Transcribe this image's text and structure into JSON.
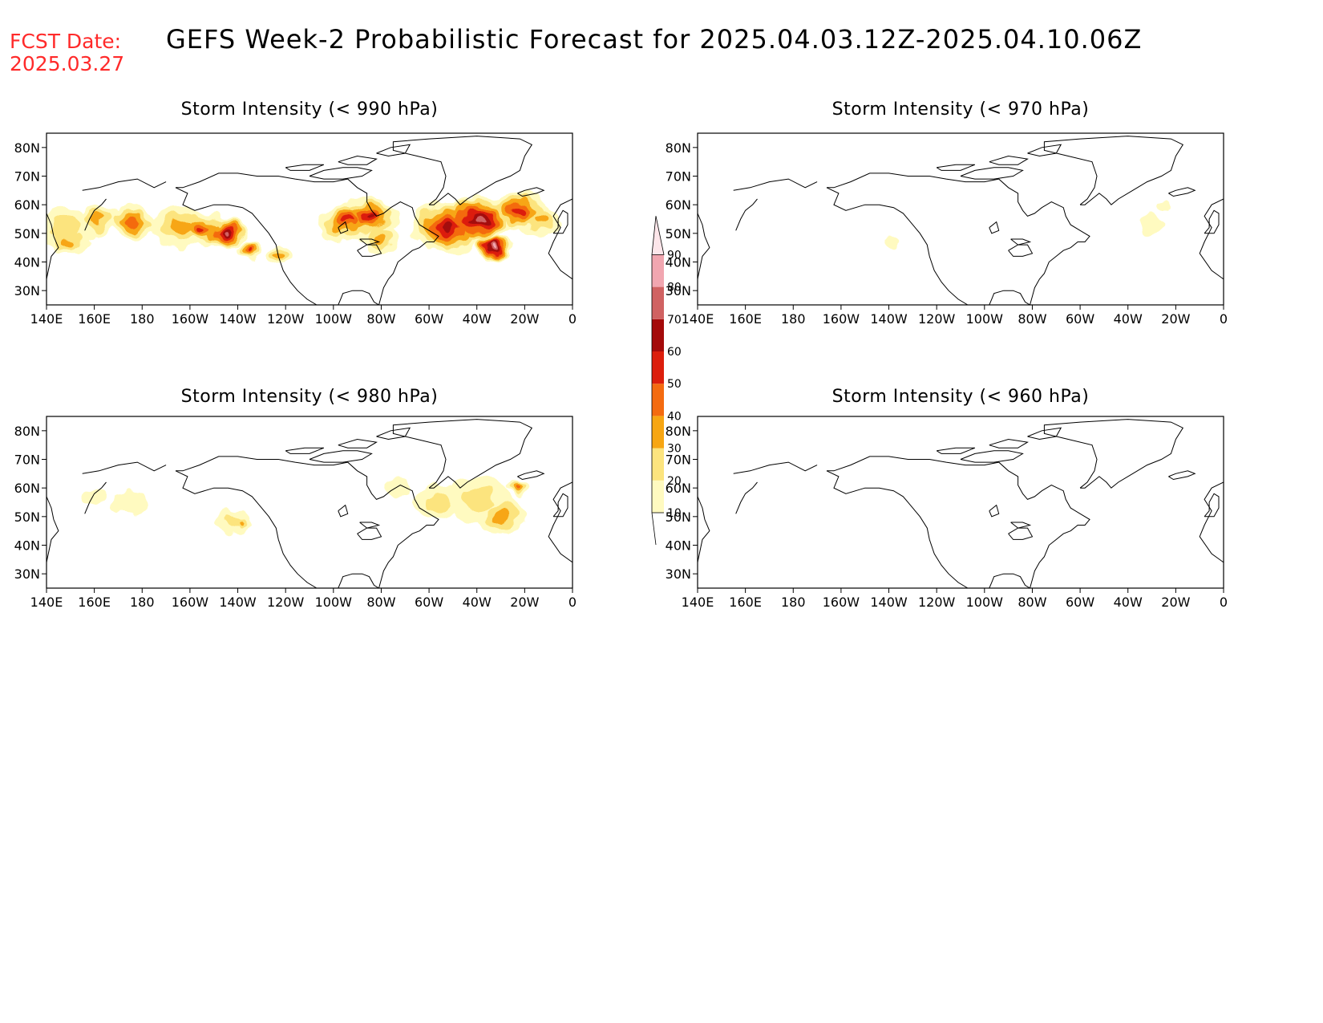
{
  "header": {
    "fcst_label": "FCST Date:",
    "fcst_date": "2025.03.27",
    "title": "GEFS Week-2 Probabilistic Forecast for 2025.04.03.12Z-2025.04.10.06Z"
  },
  "axes": {
    "x_labels": [
      "140E",
      "160E",
      "180",
      "160W",
      "140W",
      "120W",
      "100W",
      "80W",
      "60W",
      "40W",
      "20W",
      "0"
    ],
    "y_labels": [
      "80N",
      "70N",
      "60N",
      "50N",
      "40N",
      "30N"
    ]
  },
  "colorbar": {
    "labels": [
      "10",
      "20",
      "30",
      "40",
      "50",
      "60",
      "70",
      "80",
      "90"
    ],
    "colors": [
      "#fffac0",
      "#fce47e",
      "#f7a613",
      "#f46b10",
      "#dc1e0c",
      "#a40a0a",
      "#d06262",
      "#f1a6b0",
      "#fde6ea"
    ]
  },
  "panels": [
    {
      "id": "p990",
      "title": "Storm Intensity (< 990 hPa)"
    },
    {
      "id": "p970",
      "title": "Storm Intensity (< 970 hPa)"
    },
    {
      "id": "p980",
      "title": "Storm Intensity (< 980 hPa)"
    },
    {
      "id": "p960",
      "title": "Storm Intensity (< 960 hPa)"
    }
  ],
  "map_data": {
    "extent": {
      "lon": [
        140,
        360
      ],
      "lat": [
        25,
        85
      ]
    },
    "levels_percent": [
      10,
      20,
      30,
      40,
      50,
      60,
      70,
      80,
      90
    ],
    "fields": {
      "p990": [
        {
          "lon": 148,
          "lat": 52,
          "r": 10,
          "level": 2
        },
        {
          "lon": 150,
          "lat": 47,
          "r": 6,
          "level": 3
        },
        {
          "lon": 162,
          "lat": 55,
          "r": 7,
          "level": 3
        },
        {
          "lon": 176,
          "lat": 54,
          "r": 8,
          "level": 4
        },
        {
          "lon": 196,
          "lat": 52,
          "r": 10,
          "level": 3
        },
        {
          "lon": 205,
          "lat": 52,
          "r": 8,
          "level": 5
        },
        {
          "lon": 215,
          "lat": 50,
          "r": 7,
          "level": 7
        },
        {
          "lon": 225,
          "lat": 44,
          "r": 4,
          "level": 5
        },
        {
          "lon": 238,
          "lat": 42,
          "r": 4,
          "level": 3
        },
        {
          "lon": 265,
          "lat": 54,
          "r": 9,
          "level": 5
        },
        {
          "lon": 275,
          "lat": 56,
          "r": 9,
          "level": 6
        },
        {
          "lon": 280,
          "lat": 48,
          "r": 7,
          "level": 3
        },
        {
          "lon": 308,
          "lat": 52,
          "r": 12,
          "level": 6
        },
        {
          "lon": 320,
          "lat": 55,
          "r": 11,
          "level": 7
        },
        {
          "lon": 327,
          "lat": 45,
          "r": 6,
          "level": 8
        },
        {
          "lon": 338,
          "lat": 58,
          "r": 9,
          "level": 5
        },
        {
          "lon": 346,
          "lat": 54,
          "r": 7,
          "level": 3
        }
      ],
      "p970": [
        {
          "lon": 222,
          "lat": 47,
          "r": 3,
          "level": 1
        },
        {
          "lon": 330,
          "lat": 53,
          "r": 4,
          "level": 1
        },
        {
          "lon": 336,
          "lat": 60,
          "r": 2,
          "level": 1
        }
      ],
      "p980": [
        {
          "lon": 160,
          "lat": 57,
          "r": 4,
          "level": 1
        },
        {
          "lon": 176,
          "lat": 55,
          "r": 6,
          "level": 1
        },
        {
          "lon": 218,
          "lat": 48,
          "r": 6,
          "level": 2
        },
        {
          "lon": 222,
          "lat": 48,
          "r": 3,
          "level": 3
        },
        {
          "lon": 287,
          "lat": 60,
          "r": 4,
          "level": 1
        },
        {
          "lon": 304,
          "lat": 55,
          "r": 8,
          "level": 2
        },
        {
          "lon": 320,
          "lat": 56,
          "r": 11,
          "level": 2
        },
        {
          "lon": 330,
          "lat": 50,
          "r": 8,
          "level": 3
        },
        {
          "lon": 338,
          "lat": 60,
          "r": 4,
          "level": 4
        }
      ],
      "p960": []
    }
  }
}
